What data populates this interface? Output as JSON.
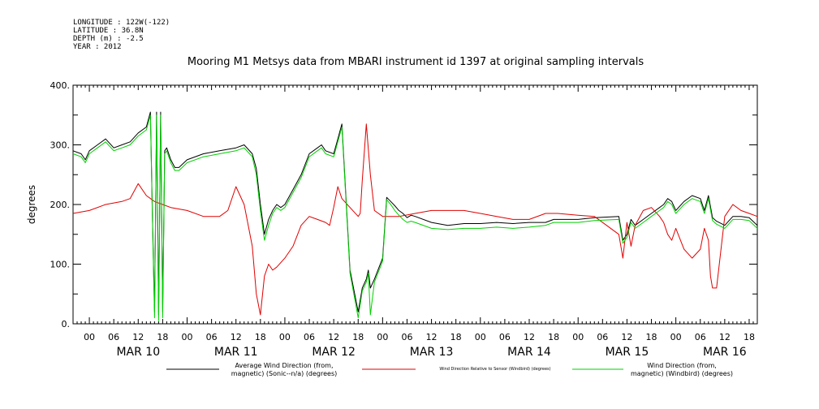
{
  "header": {
    "meta_lines": [
      "LONGITUDE : 122W(-122)",
      "LATITUDE : 36.8N",
      "DEPTH (m) : -2.5",
      "YEAR : 2012"
    ]
  },
  "chart_data": {
    "type": "line",
    "title": "Mooring M1 Metsys data from MBARI instrument id 1397 at original sampling intervals",
    "ylabel": "degrees",
    "ylim": [
      0,
      400
    ],
    "yticks": [
      0,
      100,
      200,
      300,
      400
    ],
    "ytick_labels": [
      "0.",
      "100.",
      "200.",
      "300.",
      "400."
    ],
    "xlim_hours": [
      -4,
      164
    ],
    "hour_labels": [
      "00",
      "06",
      "12",
      "18"
    ],
    "day_labels": [
      "MAR 10",
      "MAR 11",
      "MAR 12",
      "MAR 13",
      "MAR 14",
      "MAR 15",
      "MAR 16"
    ],
    "grid": false,
    "legend_position": "bottom",
    "colors": {
      "black": "#000000",
      "red": "#e00000",
      "green": "#00d000"
    },
    "series": [
      {
        "name": "Average Wind Direction (from, magnetic) (Sonic--n/a) (degrees)",
        "legend_lines": [
          "Average Wind Direction (from,",
          "magnetic) (Sonic--n/a) (degrees)"
        ],
        "color": "#000000",
        "x_hours": [
          -4,
          -2,
          -1,
          0,
          2,
          4,
          6,
          8,
          10,
          12,
          14,
          15,
          15.5,
          16,
          16.5,
          17,
          17.5,
          18,
          18.5,
          19,
          20,
          21,
          22,
          24,
          28,
          32,
          36,
          38,
          40,
          41,
          42,
          43,
          44,
          45,
          46,
          47,
          48,
          50,
          52,
          54,
          56,
          57,
          58,
          60,
          61,
          62,
          64,
          66,
          67,
          68,
          68.5,
          69,
          70,
          72,
          73,
          74,
          75,
          76,
          77,
          78,
          79,
          80,
          84,
          88,
          92,
          96,
          100,
          104,
          108,
          112,
          114,
          115,
          120,
          124,
          130,
          131,
          132,
          133,
          134,
          136,
          138,
          140,
          141,
          142,
          143,
          144,
          146,
          148,
          150,
          151,
          152,
          153,
          154,
          156,
          158,
          160,
          162,
          164
        ],
        "y": [
          290,
          285,
          275,
          290,
          300,
          310,
          295,
          300,
          305,
          320,
          330,
          355,
          180,
          20,
          355,
          15,
          355,
          20,
          290,
          295,
          275,
          262,
          262,
          275,
          285,
          290,
          295,
          300,
          285,
          260,
          200,
          150,
          175,
          190,
          200,
          195,
          200,
          225,
          250,
          285,
          295,
          300,
          290,
          285,
          310,
          335,
          90,
          20,
          60,
          75,
          90,
          60,
          75,
          110,
          212,
          205,
          198,
          190,
          185,
          178,
          182,
          180,
          170,
          165,
          168,
          168,
          170,
          168,
          170,
          170,
          175,
          175,
          175,
          178,
          180,
          140,
          150,
          175,
          165,
          175,
          185,
          195,
          200,
          210,
          205,
          190,
          205,
          215,
          210,
          190,
          215,
          178,
          172,
          165,
          180,
          180,
          178,
          165
        ]
      },
      {
        "name": "Wind Direction Relative to Sensor (Windbird) (degrees)",
        "legend_lines": [
          "Wind Direction Relative to Sensor (Windbird) (degrees)"
        ],
        "color": "#e00000",
        "x_hours": [
          -4,
          0,
          4,
          8,
          10,
          12,
          14,
          16,
          18,
          20,
          24,
          28,
          32,
          34,
          36,
          38,
          40,
          41,
          42,
          43,
          44,
          45,
          46,
          48,
          50,
          52,
          54,
          56,
          58,
          59,
          60,
          61,
          62,
          64,
          66,
          66.5,
          67,
          68,
          69,
          70,
          72,
          76,
          80,
          84,
          88,
          92,
          96,
          100,
          104,
          108,
          112,
          114,
          115,
          120,
          124,
          130,
          131,
          132,
          133,
          134,
          136,
          138,
          140,
          141,
          142,
          143,
          144,
          146,
          148,
          150,
          151,
          152,
          152.5,
          153,
          154,
          156,
          158,
          160,
          162,
          164
        ],
        "y": [
          185,
          190,
          200,
          205,
          210,
          235,
          215,
          205,
          200,
          195,
          190,
          180,
          180,
          190,
          230,
          200,
          130,
          50,
          15,
          80,
          100,
          90,
          95,
          110,
          130,
          165,
          180,
          175,
          170,
          165,
          195,
          230,
          210,
          195,
          180,
          185,
          240,
          335,
          250,
          190,
          180,
          180,
          185,
          190,
          190,
          190,
          185,
          180,
          175,
          175,
          185,
          185,
          185,
          182,
          180,
          150,
          110,
          170,
          130,
          165,
          190,
          195,
          180,
          170,
          150,
          140,
          160,
          125,
          110,
          125,
          160,
          140,
          80,
          60,
          60,
          180,
          200,
          190,
          185,
          180
        ]
      },
      {
        "name": "Wind Direction (from, magnetic) (Windbird) (degrees)",
        "legend_lines": [
          "Wind Direction (from,",
          "magnetic) (Windbird) (degrees)"
        ],
        "color": "#00d000",
        "x_hours": [
          -4,
          -2,
          -1,
          0,
          2,
          4,
          6,
          8,
          10,
          12,
          14,
          15,
          15.5,
          16,
          16.5,
          17,
          17.5,
          18,
          18.5,
          19,
          20,
          21,
          22,
          24,
          28,
          32,
          36,
          38,
          40,
          41,
          42,
          43,
          44,
          45,
          46,
          47,
          48,
          50,
          52,
          54,
          56,
          57,
          58,
          60,
          61,
          62,
          64,
          66,
          67,
          68,
          68.5,
          69,
          70,
          72,
          73,
          74,
          75,
          76,
          77,
          78,
          79,
          80,
          84,
          88,
          92,
          96,
          100,
          104,
          108,
          112,
          114,
          115,
          120,
          124,
          130,
          131,
          132,
          133,
          134,
          136,
          138,
          140,
          141,
          142,
          143,
          144,
          146,
          148,
          150,
          151,
          152,
          153,
          154,
          156,
          158,
          160,
          162,
          164
        ],
        "y": [
          285,
          280,
          270,
          285,
          295,
          305,
          290,
          295,
          300,
          315,
          325,
          350,
          175,
          10,
          350,
          5,
          350,
          10,
          285,
          290,
          270,
          257,
          257,
          270,
          280,
          285,
          290,
          295,
          280,
          250,
          190,
          140,
          165,
          185,
          195,
          190,
          195,
          220,
          245,
          280,
          290,
          295,
          285,
          280,
          305,
          330,
          85,
          10,
          55,
          70,
          85,
          15,
          70,
          105,
          208,
          200,
          190,
          182,
          175,
          170,
          172,
          170,
          160,
          158,
          160,
          160,
          162,
          160,
          162,
          165,
          170,
          170,
          170,
          173,
          175,
          135,
          145,
          170,
          160,
          170,
          180,
          190,
          195,
          205,
          200,
          185,
          200,
          210,
          205,
          185,
          210,
          173,
          167,
          160,
          175,
          175,
          173,
          160
        ]
      }
    ]
  }
}
